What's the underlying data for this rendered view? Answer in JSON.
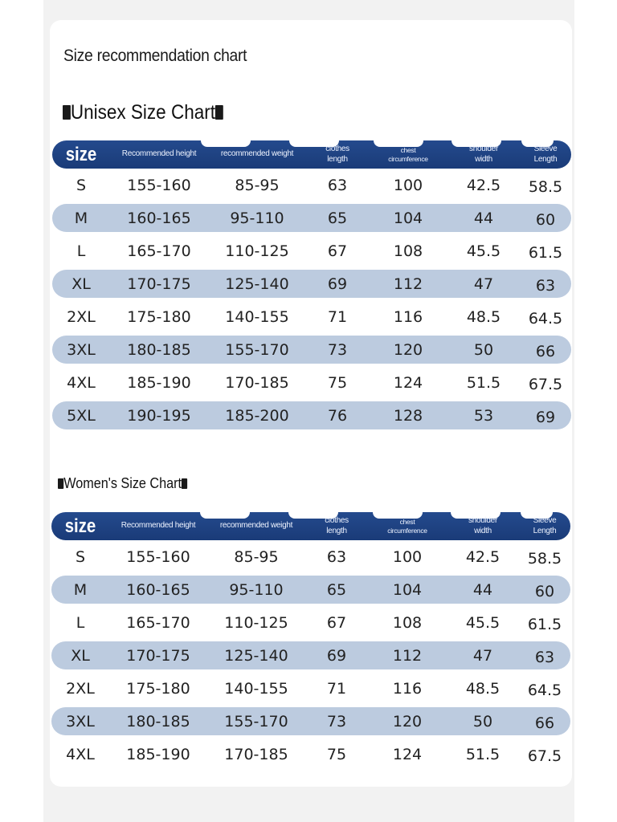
{
  "page_title": "Size recommendation chart",
  "unisex": {
    "title": "Unisex Size Chart",
    "headers": {
      "size": "size",
      "height": "Recommended height",
      "weight": "recommended weight",
      "clothes_length_1": "clothes",
      "clothes_length_2": "length",
      "chest_1": "chest",
      "chest_2": "circumference",
      "shoulder_1": "shoulder",
      "shoulder_2": "width",
      "sleeve_1": "Sleeve",
      "sleeve_2": "Length"
    },
    "rows": [
      [
        "S",
        "155-160",
        "85-95",
        "63",
        "100",
        "42.5",
        "58.5"
      ],
      [
        "M",
        "160-165",
        "95-110",
        "65",
        "104",
        "44",
        "60"
      ],
      [
        "L",
        "165-170",
        "110-125",
        "67",
        "108",
        "45.5",
        "61.5"
      ],
      [
        "XL",
        "170-175",
        "125-140",
        "69",
        "112",
        "47",
        "63"
      ],
      [
        "2XL",
        "175-180",
        "140-155",
        "71",
        "116",
        "48.5",
        "64.5"
      ],
      [
        "3XL",
        "180-185",
        "155-170",
        "73",
        "120",
        "50",
        "66"
      ],
      [
        "4XL",
        "185-190",
        "170-185",
        "75",
        "124",
        "51.5",
        "67.5"
      ],
      [
        "5XL",
        "190-195",
        "185-200",
        "76",
        "128",
        "53",
        "69"
      ]
    ]
  },
  "women": {
    "title": "Women's Size Chart",
    "headers": {
      "size": "size",
      "height": "Recommended height",
      "weight": "recommended weight",
      "clothes_length_1": "clothes",
      "clothes_length_2": "length",
      "chest_1": "chest",
      "chest_2": "circumference",
      "shoulder_1": "shoulder",
      "shoulder_2": "width",
      "sleeve_1": "Sleeve",
      "sleeve_2": "Length"
    },
    "rows": [
      [
        "S",
        "155-160",
        "85-95",
        "63",
        "100",
        "42.5",
        "58.5"
      ],
      [
        "M",
        "160-165",
        "95-110",
        "65",
        "104",
        "44",
        "60"
      ],
      [
        "L",
        "165-170",
        "110-125",
        "67",
        "108",
        "45.5",
        "61.5"
      ],
      [
        "XL",
        "170-175",
        "125-140",
        "69",
        "112",
        "47",
        "63"
      ],
      [
        "2XL",
        "175-180",
        "140-155",
        "71",
        "116",
        "48.5",
        "64.5"
      ],
      [
        "3XL",
        "180-185",
        "155-170",
        "73",
        "120",
        "50",
        "66"
      ],
      [
        "4XL",
        "185-190",
        "170-185",
        "75",
        "124",
        "51.5",
        "67.5"
      ]
    ]
  },
  "colors": {
    "header_bg": "#1e3f7f",
    "band_bg": "#bccbdf",
    "text": "#222222"
  }
}
